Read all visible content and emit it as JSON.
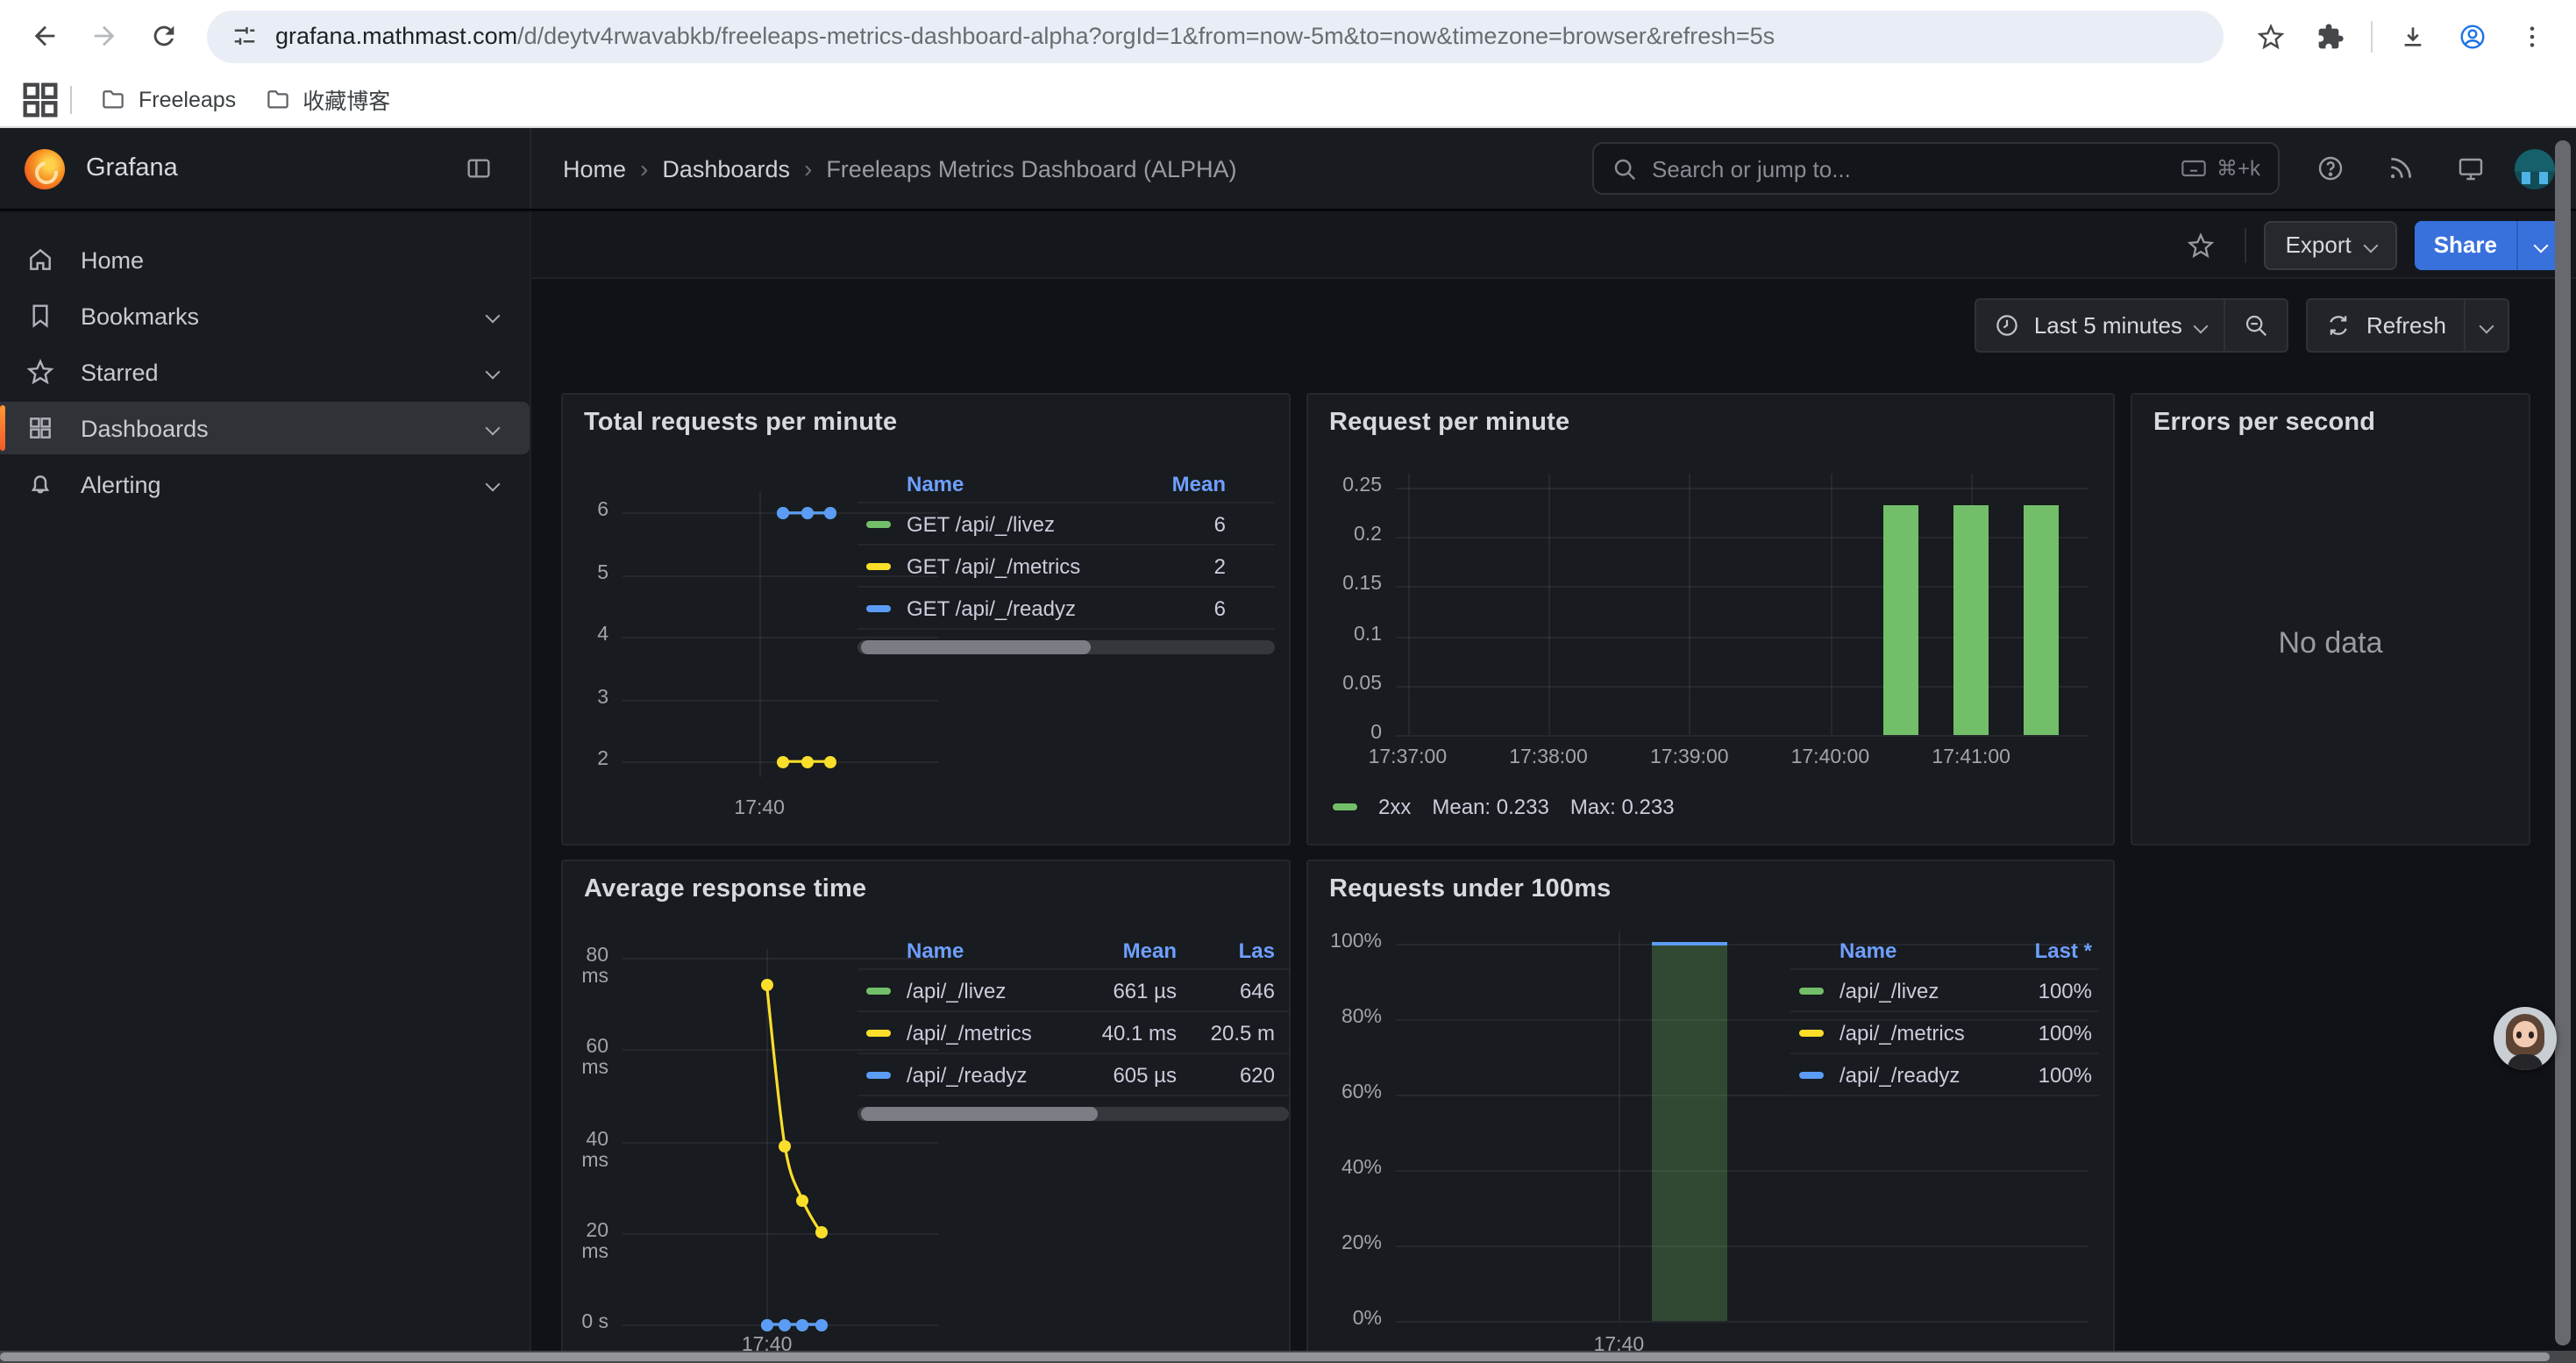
{
  "browser": {
    "url_domain": "grafana.mathmast.com",
    "url_path": "/d/deytv4rwavabkb/freeleaps-metrics-dashboard-alpha?orgId=1&from=now-5m&to=now&timezone=browser&refresh=5s",
    "bookmarks": [
      {
        "label": "Freeleaps"
      },
      {
        "label": "收藏博客"
      }
    ]
  },
  "grafana": {
    "brand": "Grafana",
    "breadcrumb": [
      "Home",
      "Dashboards",
      "Freeleaps Metrics Dashboard (ALPHA)"
    ],
    "search": {
      "placeholder": "Search or jump to...",
      "shortcut": "⌘+k"
    },
    "actions": {
      "export_label": "Export",
      "share_label": "Share"
    },
    "time_controls": {
      "range_label": "Last 5 minutes",
      "refresh_label": "Refresh"
    },
    "sidebar": [
      {
        "label": "Home",
        "icon": "home-icon",
        "expandable": false,
        "selected": false
      },
      {
        "label": "Bookmarks",
        "icon": "bookmark-icon",
        "expandable": true,
        "selected": false
      },
      {
        "label": "Starred",
        "icon": "star-icon",
        "expandable": true,
        "selected": false
      },
      {
        "label": "Dashboards",
        "icon": "apps-icon",
        "expandable": true,
        "selected": true
      },
      {
        "label": "Alerting",
        "icon": "bell-icon",
        "expandable": true,
        "selected": false
      }
    ],
    "colors": {
      "accent_blue": "#3871dc",
      "selected_orange": "#f25a29",
      "legend_header_blue": "#6e9fff",
      "series_green": "#73bf69",
      "series_yellow": "#fade2a",
      "series_blue": "#5b9cf6"
    }
  },
  "panels": [
    {
      "id": "p1",
      "title": "Total requests per minute",
      "legend_table": {
        "columns": [
          "Name",
          "Mean"
        ],
        "rows": [
          {
            "color": "#73bf69",
            "name": "GET /api/_/livez",
            "values": [
              "6"
            ]
          },
          {
            "color": "#fade2a",
            "name": "GET /api/_/metrics",
            "values": [
              "2"
            ]
          },
          {
            "color": "#5b9cf6",
            "name": "GET /api/_/readyz",
            "values": [
              "6"
            ]
          }
        ]
      }
    },
    {
      "id": "p2",
      "title": "Request per minute",
      "legend_inline": {
        "series": "2xx",
        "mean": "Mean: 0.233",
        "max": "Max: 0.233",
        "color": "#73bf69"
      }
    },
    {
      "id": "p3",
      "title": "Errors per second",
      "no_data": "No data"
    },
    {
      "id": "p4",
      "title": "Average response time",
      "legend_table": {
        "columns": [
          "Name",
          "Mean",
          "Las"
        ],
        "rows": [
          {
            "color": "#73bf69",
            "name": "/api/_/livez",
            "values": [
              "661 µs",
              "646"
            ]
          },
          {
            "color": "#fade2a",
            "name": "/api/_/metrics",
            "values": [
              "40.1 ms",
              "20.5 m"
            ]
          },
          {
            "color": "#5b9cf6",
            "name": "/api/_/readyz",
            "values": [
              "605 µs",
              "620"
            ]
          }
        ]
      }
    },
    {
      "id": "p5",
      "title": "Requests under 100ms",
      "legend_table": {
        "columns": [
          "Name",
          "Last *"
        ],
        "rows": [
          {
            "color": "#73bf69",
            "name": "/api/_/livez",
            "values": [
              "100%"
            ]
          },
          {
            "color": "#fade2a",
            "name": "/api/_/metrics",
            "values": [
              "100%"
            ]
          },
          {
            "color": "#5b9cf6",
            "name": "/api/_/readyz",
            "values": [
              "100%"
            ]
          }
        ]
      }
    }
  ],
  "chart_data": [
    {
      "panel": "p1",
      "type": "line",
      "title": "Total requests per minute",
      "x_range": [
        "17:38:05",
        "17:42:30"
      ],
      "ylim": [
        1.75,
        6.35
      ],
      "yticks": [
        {
          "value": 6,
          "label": "6"
        },
        {
          "value": 5,
          "label": "5"
        },
        {
          "value": 4,
          "label": "4"
        },
        {
          "value": 3,
          "label": "3"
        },
        {
          "value": 2,
          "label": "2"
        }
      ],
      "xticks": [
        {
          "time": "17:40:00",
          "label": "17:40",
          "gridline": true
        }
      ],
      "series": [
        {
          "name": "GET /api/_/livez",
          "color": "#73bf69",
          "points": [
            [
              "17:40:20",
              6
            ],
            [
              "17:40:40",
              6
            ],
            [
              "17:41:00",
              6
            ]
          ]
        },
        {
          "name": "GET /api/_/metrics",
          "color": "#fade2a",
          "points": [
            [
              "17:40:20",
              2
            ],
            [
              "17:40:40",
              2
            ],
            [
              "17:41:00",
              2
            ]
          ]
        },
        {
          "name": "GET /api/_/readyz",
          "color": "#5b9cf6",
          "points": [
            [
              "17:40:20",
              6
            ],
            [
              "17:40:40",
              6
            ],
            [
              "17:41:00",
              6
            ]
          ]
        }
      ]
    },
    {
      "panel": "p2",
      "type": "bar",
      "title": "Request per minute",
      "x_range": [
        "17:36:55",
        "17:41:50"
      ],
      "ylim": [
        0,
        0.264
      ],
      "yticks": [
        {
          "value": 0,
          "label": "0"
        },
        {
          "value": 0.05,
          "label": "0.05"
        },
        {
          "value": 0.1,
          "label": "0.1"
        },
        {
          "value": 0.15,
          "label": "0.15"
        },
        {
          "value": 0.2,
          "label": "0.2"
        },
        {
          "value": 0.25,
          "label": "0.25"
        }
      ],
      "xticks": [
        {
          "time": "17:37:00",
          "label": "17:37:00",
          "gridline": true
        },
        {
          "time": "17:38:00",
          "label": "17:38:00",
          "gridline": true
        },
        {
          "time": "17:39:00",
          "label": "17:39:00",
          "gridline": true
        },
        {
          "time": "17:40:00",
          "label": "17:40:00",
          "gridline": true
        },
        {
          "time": "17:41:00",
          "label": "17:41:00",
          "gridline": true
        }
      ],
      "bars": {
        "name": "2xx",
        "color": "#73bf69",
        "width_sec": 15,
        "points": [
          [
            "17:40:30",
            0.233
          ],
          [
            "17:41:00",
            0.233
          ],
          [
            "17:41:30",
            0.233
          ]
        ]
      },
      "legend": {
        "series": "2xx",
        "mean": 0.233,
        "max": 0.233
      }
    },
    {
      "panel": "p4",
      "type": "line",
      "title": "Average response time",
      "x_range": [
        "17:37:20",
        "17:43:10"
      ],
      "ylim": [
        0,
        82
      ],
      "y_unit": "ms",
      "yticks": [
        {
          "value": 80,
          "label": "80 ms"
        },
        {
          "value": 60,
          "label": "60 ms"
        },
        {
          "value": 40,
          "label": "40 ms"
        },
        {
          "value": 20,
          "label": "20 ms"
        },
        {
          "value": 0,
          "label": "0 s"
        }
      ],
      "xticks": [
        {
          "time": "17:40:00",
          "label": "17:40",
          "gridline": true
        }
      ],
      "series": [
        {
          "name": "/api/_/livez",
          "color": "#73bf69",
          "smooth": false,
          "points": [
            [
              "17:40:00",
              0
            ],
            [
              "17:40:20",
              0
            ],
            [
              "17:40:40",
              0
            ],
            [
              "17:41:00",
              0
            ]
          ]
        },
        {
          "name": "/api/_/metrics",
          "color": "#fade2a",
          "smooth": true,
          "points": [
            [
              "17:40:00",
              74
            ],
            [
              "17:40:20",
              39
            ],
            [
              "17:40:40",
              27
            ],
            [
              "17:41:00",
              20
            ]
          ]
        },
        {
          "name": "/api/_/readyz",
          "color": "#5b9cf6",
          "smooth": false,
          "points": [
            [
              "17:40:00",
              0
            ],
            [
              "17:40:20",
              0
            ],
            [
              "17:40:40",
              0
            ],
            [
              "17:41:00",
              0
            ]
          ]
        }
      ]
    },
    {
      "panel": "p5",
      "type": "bar",
      "title": "Requests under 100ms",
      "x_range": [
        "17:38:25",
        "17:43:20"
      ],
      "ylim": [
        0,
        103
      ],
      "y_unit": "%",
      "yticks": [
        {
          "value": 0,
          "label": "0%"
        },
        {
          "value": 20,
          "label": "20%"
        },
        {
          "value": 40,
          "label": "40%"
        },
        {
          "value": 60,
          "label": "60%"
        },
        {
          "value": 80,
          "label": "80%"
        },
        {
          "value": 100,
          "label": "100%"
        }
      ],
      "xticks": [
        {
          "time": "17:40:00",
          "label": "17:40",
          "gridline": true
        }
      ],
      "bars": {
        "name": "/api/_/readyz",
        "color": "rgba(115,191,105,0.28)",
        "cap_color": "#5b9cf6",
        "width_sec": 32,
        "points": [
          [
            "17:40:30",
            100
          ]
        ]
      }
    }
  ]
}
